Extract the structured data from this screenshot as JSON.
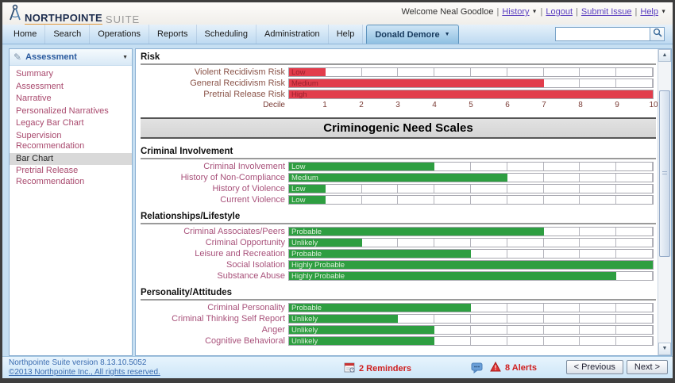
{
  "header": {
    "brand": "NORTHPOINTE",
    "brand_suffix": "SUITE",
    "welcome": "Welcome Neal Goodloe",
    "links": [
      "History",
      "Logout",
      "Submit Issue",
      "Help"
    ]
  },
  "nav": {
    "items": [
      "Home",
      "Search",
      "Operations",
      "Reports",
      "Scheduling",
      "Administration",
      "Help"
    ],
    "active_tab": "Donald Demore",
    "search_value": ""
  },
  "sidebar": {
    "title": "Assessment",
    "items": [
      "Summary",
      "Assessment",
      "Narrative",
      "Personalized Narratives",
      "Legacy Bar Chart",
      "Supervision Recommendation",
      "Bar Chart",
      "Pretrial Release Recommendation"
    ],
    "selected_item": "Bar Chart"
  },
  "chart_data": [
    {
      "type": "bar",
      "title": "Risk",
      "bar_color": "#e23d4c",
      "bar_text_color": "#9a1f2d",
      "label_color": "#8a5348",
      "xlabel": "Decile",
      "xticks": [
        1,
        2,
        3,
        4,
        5,
        6,
        7,
        8,
        9,
        10
      ],
      "xlim": [
        0,
        10
      ],
      "grid": true,
      "rows": [
        {
          "label": "Violent Recidivism Risk",
          "level": "Low",
          "value": 1
        },
        {
          "label": "General Recidivism Risk",
          "level": "Medium",
          "value": 7
        },
        {
          "label": "Pretrial Release Risk",
          "level": "High",
          "value": 10
        }
      ]
    },
    {
      "type": "banner",
      "text": "Criminogenic Need Scales"
    },
    {
      "type": "bar",
      "title": "Criminal Involvement",
      "bar_color": "#2e9e41",
      "bar_text_color": "#ddf0da",
      "label_color": "#a8517a",
      "xlim": [
        0,
        10
      ],
      "grid": true,
      "rows": [
        {
          "label": "Criminal Involvement",
          "level": "Low",
          "value": 4
        },
        {
          "label": "History of Non-Compliance",
          "level": "Medium",
          "value": 6
        },
        {
          "label": "History of Violence",
          "level": "Low",
          "value": 1
        },
        {
          "label": "Current Violence",
          "level": "Low",
          "value": 1
        }
      ]
    },
    {
      "type": "bar",
      "title": "Relationships/Lifestyle",
      "bar_color": "#2e9e41",
      "bar_text_color": "#ddf0da",
      "label_color": "#a8517a",
      "xlim": [
        0,
        10
      ],
      "grid": true,
      "rows": [
        {
          "label": "Criminal Associates/Peers",
          "level": "Probable",
          "value": 7
        },
        {
          "label": "Criminal Opportunity",
          "level": "Unlikely",
          "value": 2
        },
        {
          "label": "Leisure and Recreation",
          "level": "Probable",
          "value": 5
        },
        {
          "label": "Social Isolation",
          "level": "Highly Probable",
          "value": 10
        },
        {
          "label": "Substance Abuse",
          "level": "Highly Probable",
          "value": 9
        }
      ]
    },
    {
      "type": "bar",
      "title": "Personality/Attitudes",
      "bar_color": "#2e9e41",
      "bar_text_color": "#ddf0da",
      "label_color": "#a8517a",
      "xlim": [
        0,
        10
      ],
      "grid": true,
      "rows": [
        {
          "label": "Criminal Personality",
          "level": "Probable",
          "value": 5
        },
        {
          "label": "Criminal Thinking Self Report",
          "level": "Unlikely",
          "value": 3
        },
        {
          "label": "Anger",
          "level": "Unlikely",
          "value": 4
        },
        {
          "label": "Cognitive Behavioral",
          "level": "Unlikely",
          "value": 4
        }
      ]
    }
  ],
  "footer": {
    "version_line1": "Northpointe Suite version 8.13.10.5052",
    "version_line2": "©2013 Northpointe Inc., All rights reserved.",
    "reminders": "2 Reminders",
    "alerts": "8 Alerts",
    "prev_button": "< Previous",
    "next_button": "Next >"
  }
}
